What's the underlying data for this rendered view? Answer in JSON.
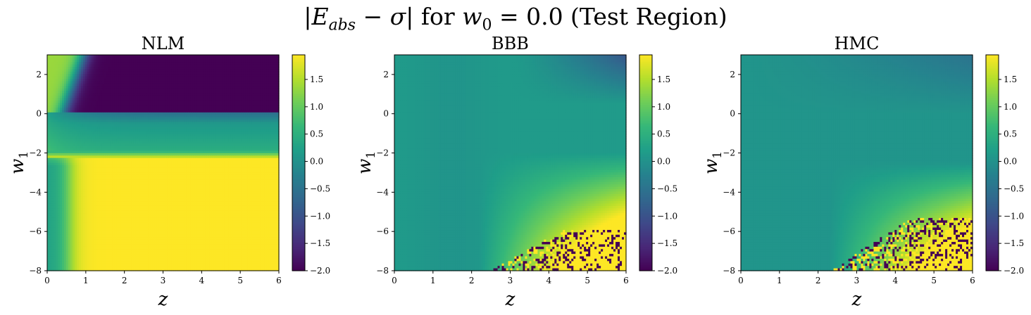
{
  "figure": {
    "suptitle": {
      "pre": "|",
      "var": "E",
      "sub": "abs",
      "mid": " − ",
      "sigma": "σ",
      "post": "| for ",
      "w": "w",
      "wsub": "0",
      "rest": " = 0.0 (Test Region)"
    }
  },
  "chart_data": [
    {
      "type": "heatmap",
      "title": "NLM",
      "xlabel": "z",
      "ylabel": "w_1",
      "xlim": [
        0,
        6
      ],
      "ylim": [
        -8,
        3
      ],
      "xticks": [
        "0",
        "1",
        "2",
        "3",
        "4",
        "5",
        "6"
      ],
      "yticks": [
        "2",
        "0",
        "−2",
        "−4",
        "−6",
        "−8"
      ],
      "colorbar": {
        "range": [
          -2.0,
          1.95
        ],
        "cmap": "viridis",
        "ticks": [
          "1.5",
          "1.0",
          "0.5",
          "0.0",
          "−0.5",
          "−1.0",
          "−1.5",
          "−2.0"
        ]
      },
      "description_regions": [
        {
          "region": "w1 > 0, z > 0.8",
          "value": -2.0
        },
        {
          "region": "w1 in [-2, 0]",
          "value": 0.3
        },
        {
          "region": "w1 < -2, z > 0.8",
          "value": 1.95
        },
        {
          "region": "w1 > 1, z < 0.5",
          "value": 1.3
        }
      ]
    },
    {
      "type": "heatmap",
      "title": "BBB",
      "xlabel": "z",
      "ylabel": "w_1",
      "xlim": [
        0,
        6
      ],
      "ylim": [
        -8,
        3
      ],
      "xticks": [
        "0",
        "1",
        "2",
        "3",
        "4",
        "5",
        "6"
      ],
      "yticks": [
        "2",
        "0",
        "−2",
        "−4",
        "−6",
        "−8"
      ],
      "colorbar": {
        "range": [
          -2.0,
          1.95
        ],
        "cmap": "viridis",
        "ticks": [
          "1.5",
          "1.0",
          "0.5",
          "0.0",
          "−0.5",
          "−1.0",
          "−1.5",
          "−2.0"
        ]
      },
      "description_regions": [
        {
          "region": "most of domain",
          "value": 0.1
        },
        {
          "region": "top-right corner",
          "value": -1.0
        },
        {
          "region": "bottom-right (z > 2.5, w1 < -6)",
          "value": "noisy -2.0 / 1.95"
        }
      ]
    },
    {
      "type": "heatmap",
      "title": "HMC",
      "xlabel": "z",
      "ylabel": "w_1",
      "xlim": [
        0,
        6
      ],
      "ylim": [
        -8,
        3
      ],
      "xticks": [
        "0",
        "1",
        "2",
        "3",
        "4",
        "5",
        "6"
      ],
      "yticks": [
        "2",
        "0",
        "−2",
        "−4",
        "−6",
        "−8"
      ],
      "colorbar": {
        "range": [
          -2.0,
          1.95
        ],
        "cmap": "viridis",
        "ticks": [
          "1.5",
          "1.0",
          "0.5",
          "0.0",
          "−0.5",
          "−1.0",
          "−1.5",
          "−2.0"
        ]
      },
      "description_regions": [
        {
          "region": "most of domain",
          "value": 0.0
        },
        {
          "region": "top-right corner",
          "value": -0.4
        },
        {
          "region": "bottom-right (z > 2.5, w1 < -5.5)",
          "value": "noisy -2.0 / 1.95"
        }
      ]
    }
  ]
}
